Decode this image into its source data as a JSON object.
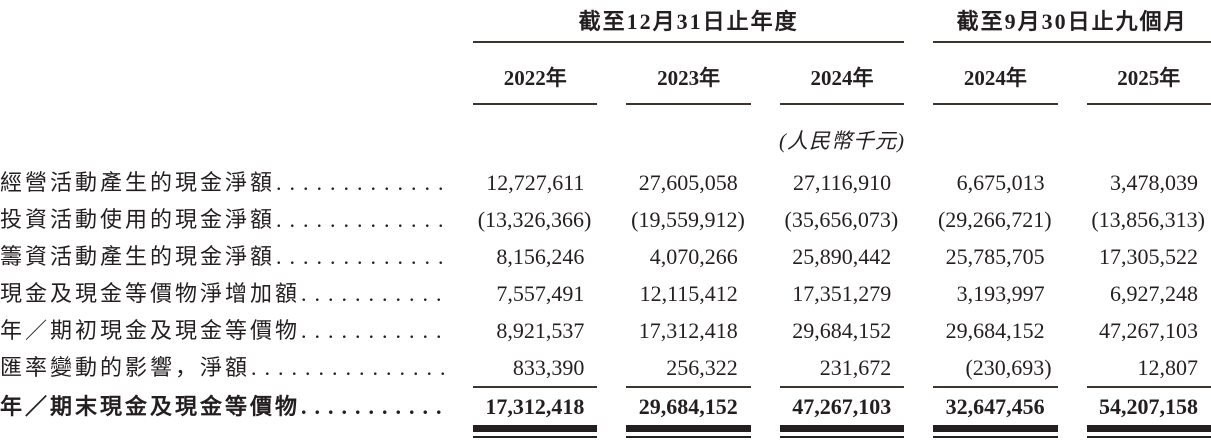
{
  "table": {
    "col_groups": [
      {
        "label": "截至12月31日止年度",
        "span": 3
      },
      {
        "label": "截至9月30日止九個月",
        "span": 2
      }
    ],
    "columns": [
      "2022年",
      "2023年",
      "2024年",
      "2024年",
      "2025年"
    ],
    "unit_note": "(人民幣千元)",
    "rows": [
      {
        "label": "經營活動產生的現金淨額",
        "values": [
          "12,727,611",
          "27,605,058",
          "27,116,910",
          "6,675,013",
          "3,478,039"
        ]
      },
      {
        "label": "投資活動使用的現金淨額",
        "values": [
          "(13,326,366)",
          "(19,559,912)",
          "(35,656,073)",
          "(29,266,721)",
          "(13,856,313)"
        ]
      },
      {
        "label": "籌資活動產生的現金淨額",
        "values": [
          "8,156,246",
          "4,070,266",
          "25,890,442",
          "25,785,705",
          "17,305,522"
        ]
      },
      {
        "label": "現金及現金等價物淨增加額",
        "values": [
          "7,557,491",
          "12,115,412",
          "17,351,279",
          "3,193,997",
          "6,927,248"
        ]
      },
      {
        "label": "年／期初現金及現金等價物",
        "values": [
          "8,921,537",
          "17,312,418",
          "29,684,152",
          "29,684,152",
          "47,267,103"
        ]
      },
      {
        "label": "匯率變動的影響，淨額",
        "values": [
          "833,390",
          "256,322",
          "231,672",
          "(230,693)",
          "12,807"
        ],
        "rule_below": true
      },
      {
        "label": "年／期末現金及現金等價物",
        "values": [
          "17,312,418",
          "29,684,152",
          "47,267,103",
          "32,647,456",
          "54,207,158"
        ],
        "bold": true,
        "total": true,
        "double_rule_below": true
      }
    ],
    "text_color": "#231f20",
    "rule_color": "#3a3530"
  }
}
